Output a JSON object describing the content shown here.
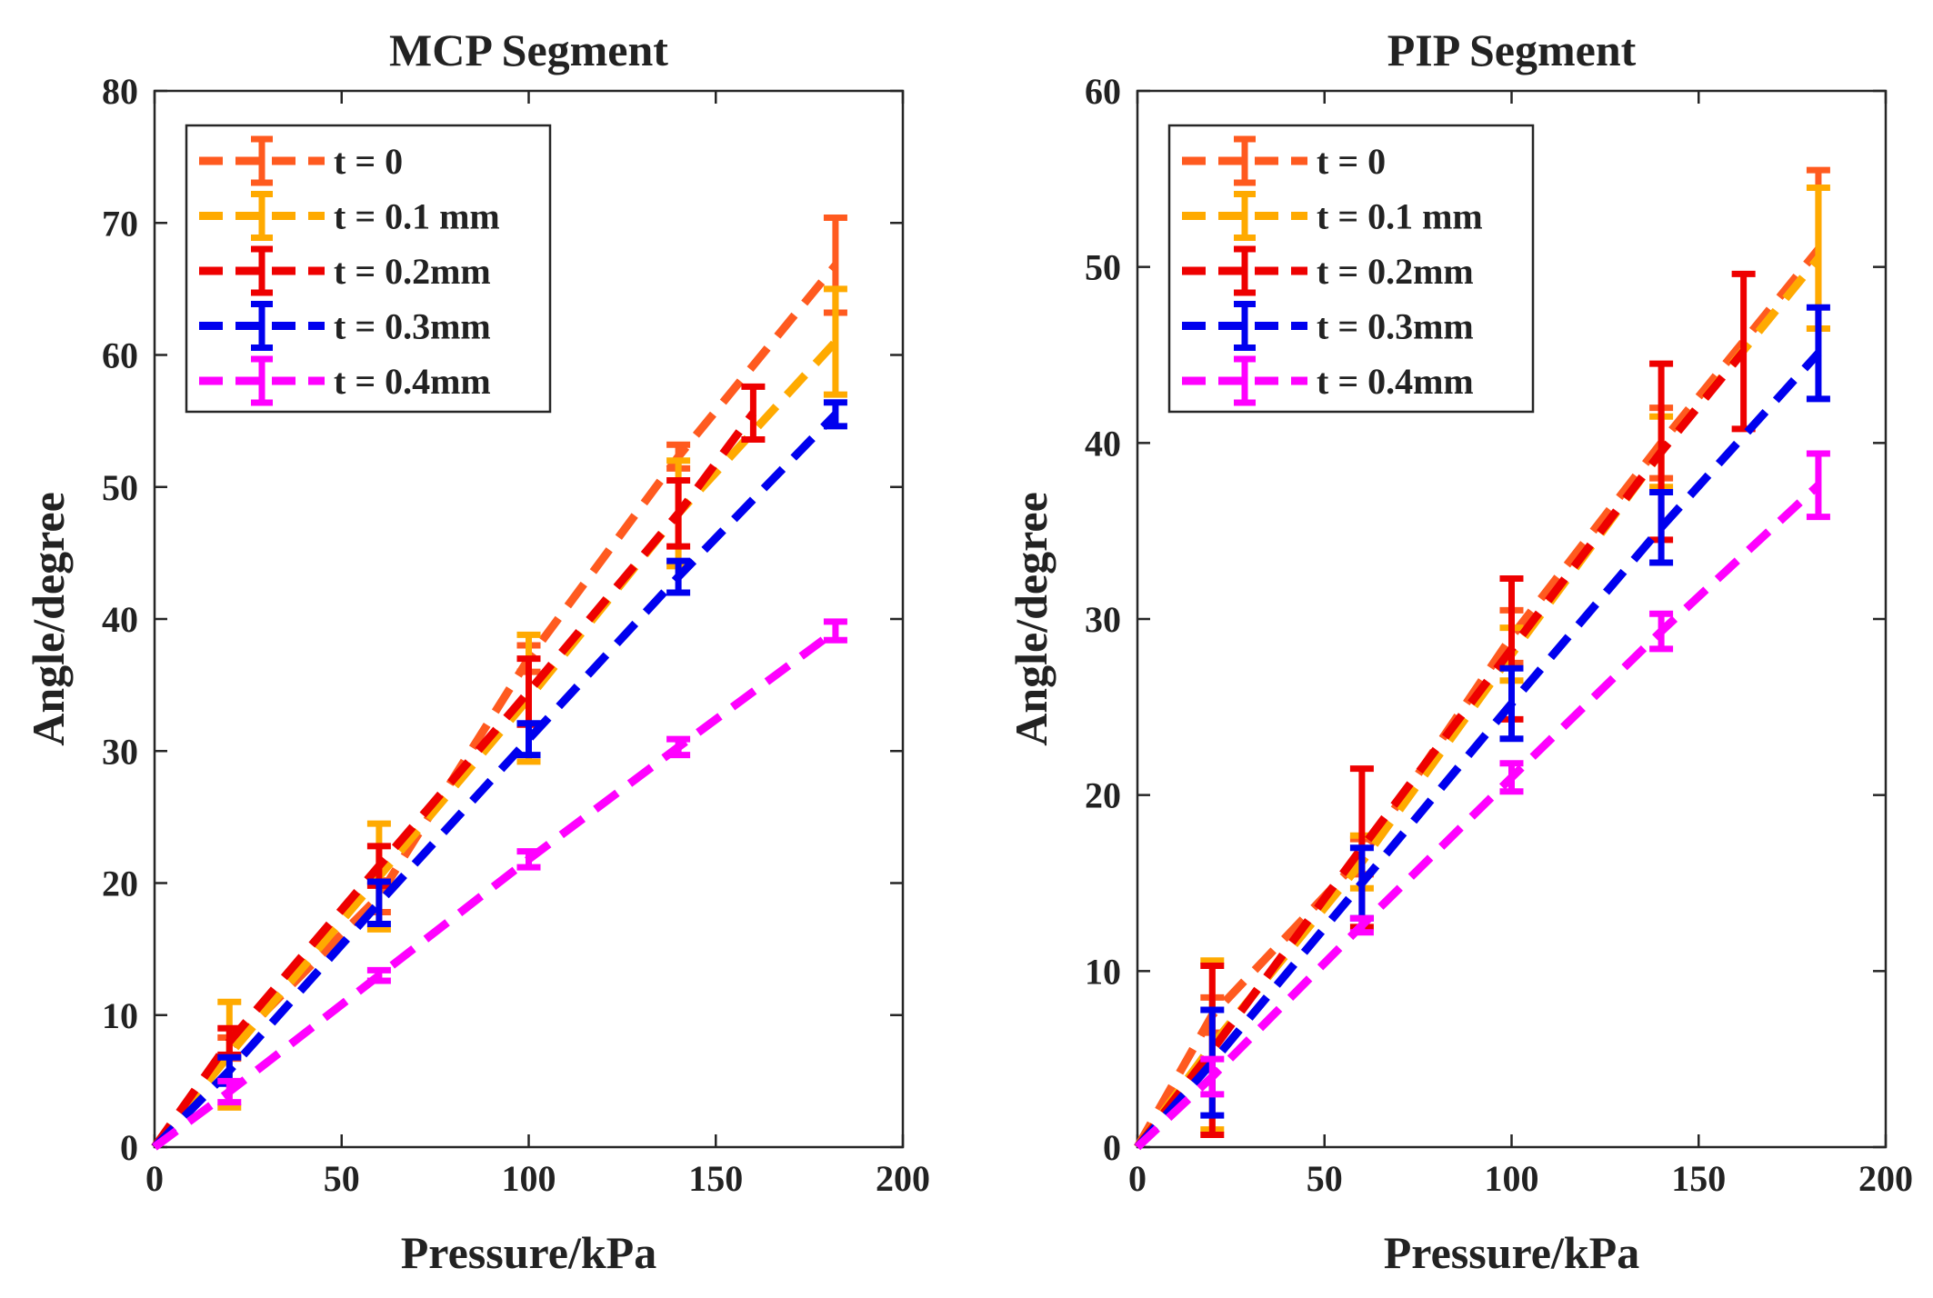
{
  "chart_data": [
    {
      "type": "line",
      "title": "MCP Segment",
      "xlabel": "Pressure/kPa",
      "ylabel": "Angle/degree",
      "xlim": [
        0,
        200
      ],
      "ylim": [
        0,
        80
      ],
      "xticks": [
        0,
        50,
        100,
        150,
        200
      ],
      "yticks": [
        0,
        10,
        20,
        30,
        40,
        50,
        60,
        70,
        80
      ],
      "legend_position": "top-left",
      "series": [
        {
          "name": "t = 0",
          "color": "#FF5A1F",
          "x": [
            0,
            20,
            60,
            100,
            140,
            182
          ],
          "y": [
            0,
            7.5,
            19,
            37,
            52.3,
            66.8
          ],
          "err": [
            0,
            0.8,
            1.2,
            1.0,
            0.9,
            3.6
          ]
        },
        {
          "name": "t = 0.1 mm",
          "color": "#FFAA00",
          "x": [
            0,
            20,
            60,
            100,
            140,
            182
          ],
          "y": [
            0,
            7,
            20.5,
            34,
            48,
            61
          ],
          "err": [
            0,
            4.0,
            4.0,
            4.8,
            4.0,
            4.0
          ]
        },
        {
          "name": "t = 0.2mm",
          "color": "#EE0000",
          "x": [
            0,
            20,
            60,
            100,
            140,
            160
          ],
          "y": [
            0,
            8,
            21.3,
            34.5,
            48,
            55.6
          ],
          "err": [
            0,
            1.0,
            1.5,
            2.5,
            2.5,
            2.0
          ]
        },
        {
          "name": "t = 0.3mm",
          "color": "#0000EE",
          "x": [
            0,
            20,
            60,
            100,
            140,
            182
          ],
          "y": [
            0,
            5.8,
            18.5,
            30.9,
            43.2,
            55.5
          ],
          "err": [
            0,
            1.0,
            1.6,
            1.2,
            1.2,
            0.9
          ]
        },
        {
          "name": "t = 0.4mm",
          "color": "#FF00FF",
          "x": [
            0,
            20,
            60,
            100,
            140,
            182
          ],
          "y": [
            0,
            4.2,
            13,
            21.8,
            30.3,
            39.1
          ],
          "err": [
            0,
            0.8,
            0.4,
            0.6,
            0.6,
            0.7
          ]
        }
      ]
    },
    {
      "type": "line",
      "title": "PIP Segment",
      "xlabel": "Pressure/kPa",
      "ylabel": "Angle/degree",
      "xlim": [
        0,
        200
      ],
      "ylim": [
        0,
        60
      ],
      "xticks": [
        0,
        50,
        100,
        150,
        200
      ],
      "yticks": [
        0,
        10,
        20,
        30,
        40,
        50,
        60
      ],
      "legend_position": "top-left",
      "series": [
        {
          "name": "t = 0",
          "color": "#FF5A1F",
          "x": [
            0,
            20,
            60,
            100,
            140,
            182
          ],
          "y": [
            0,
            7.5,
            16.5,
            29,
            40,
            51
          ],
          "err": [
            0,
            1.0,
            1.0,
            1.5,
            2.0,
            4.5
          ]
        },
        {
          "name": "t = 0.1 mm",
          "color": "#FFAA00",
          "x": [
            0,
            20,
            60,
            100,
            140,
            182
          ],
          "y": [
            0,
            5.8,
            16.2,
            28,
            39.5,
            50.5
          ],
          "err": [
            0,
            4.8,
            1.5,
            1.5,
            2.0,
            4.0
          ]
        },
        {
          "name": "t = 0.2mm",
          "color": "#EE0000",
          "x": [
            0,
            20,
            60,
            100,
            140,
            162
          ],
          "y": [
            0,
            5.5,
            17,
            28.3,
            39.5,
            45.2
          ],
          "err": [
            0,
            4.8,
            4.5,
            4.0,
            5.0,
            4.4
          ]
        },
        {
          "name": "t = 0.3mm",
          "color": "#0000EE",
          "x": [
            0,
            20,
            60,
            100,
            140,
            182
          ],
          "y": [
            0,
            4.8,
            15,
            25.2,
            35.2,
            45.1
          ],
          "err": [
            0,
            3.0,
            2.0,
            2.0,
            2.0,
            2.6
          ]
        },
        {
          "name": "t = 0.4mm",
          "color": "#FF00FF",
          "x": [
            0,
            20,
            60,
            100,
            140,
            182
          ],
          "y": [
            0,
            4.0,
            12.6,
            21,
            29.3,
            37.6
          ],
          "err": [
            0,
            1.0,
            0.4,
            0.8,
            1.0,
            1.8
          ]
        }
      ]
    }
  ]
}
